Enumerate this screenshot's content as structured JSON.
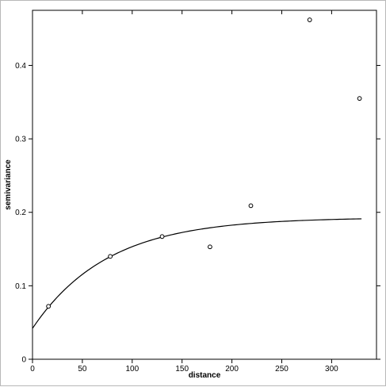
{
  "chart_data": {
    "type": "scatter",
    "xlabel": "distance",
    "ylabel": "semivariance",
    "xlim": [
      0,
      345
    ],
    "ylim": [
      0,
      0.475
    ],
    "xticks": [
      0,
      50,
      100,
      150,
      200,
      250,
      300
    ],
    "yticks": [
      0,
      0.1,
      0.2,
      0.3,
      0.4
    ],
    "xtick_labels": [
      "0",
      "50",
      "100",
      "150",
      "200",
      "250",
      "300"
    ],
    "ytick_labels": [
      "0",
      "0.1",
      "0.2",
      "0.3",
      "0.4"
    ],
    "grid": false,
    "points": {
      "x": [
        16,
        78,
        130,
        178,
        219,
        278,
        328
      ],
      "y": [
        0.072,
        0.14,
        0.167,
        0.153,
        0.209,
        0.462,
        0.355
      ]
    },
    "fitted_curve": {
      "x_start": 0,
      "x_end": 330,
      "nugget": 0.042,
      "sill": 0.193,
      "range": 75
    },
    "colors": {
      "points": "#000000",
      "curve": "#000000",
      "axes": "#000000"
    }
  }
}
